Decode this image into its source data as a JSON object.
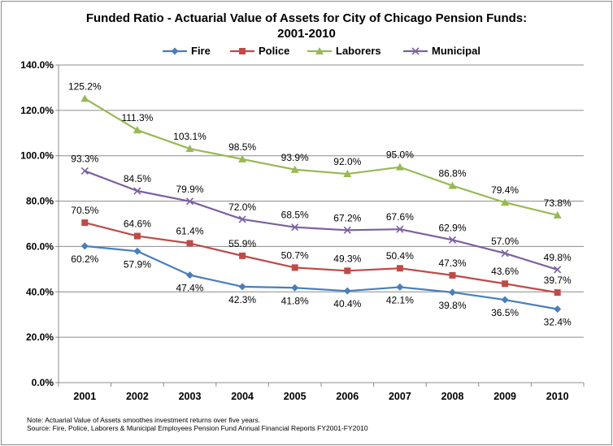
{
  "chart_data": {
    "type": "line",
    "title_line1": "Funded Ratio - Actuarial Value of Assets for City of Chicago Pension Funds:",
    "title_line2": "2001-2010",
    "categories": [
      "2001",
      "2002",
      "2003",
      "2004",
      "2005",
      "2006",
      "2007",
      "2008",
      "2009",
      "2010"
    ],
    "ylim": [
      0,
      140
    ],
    "yticks": [
      "0.0%",
      "20.0%",
      "40.0%",
      "60.0%",
      "80.0%",
      "100.0%",
      "120.0%",
      "140.0%"
    ],
    "grid": true,
    "legend_position": "top",
    "series": [
      {
        "name": "Fire",
        "color": "#4a7ebb",
        "marker": "diamond",
        "values": [
          60.2,
          57.9,
          47.4,
          42.3,
          41.8,
          40.4,
          42.1,
          39.8,
          36.5,
          32.4
        ],
        "labels": [
          "60.2%",
          "57.9%",
          "47.4%",
          "42.3%",
          "41.8%",
          "40.4%",
          "42.1%",
          "39.8%",
          "36.5%",
          "32.4%"
        ]
      },
      {
        "name": "Police",
        "color": "#be4b48",
        "marker": "square",
        "values": [
          70.5,
          64.6,
          61.4,
          55.9,
          50.7,
          49.3,
          50.4,
          47.3,
          43.6,
          39.7
        ],
        "labels": [
          "70.5%",
          "64.6%",
          "61.4%",
          "55.9%",
          "50.7%",
          "49.3%",
          "50.4%",
          "47.3%",
          "43.6%",
          "39.7%"
        ]
      },
      {
        "name": "Laborers",
        "color": "#98b954",
        "marker": "triangle",
        "values": [
          125.2,
          111.3,
          103.1,
          98.5,
          93.9,
          92.0,
          95.0,
          86.8,
          79.4,
          73.8
        ],
        "labels": [
          "125.2%",
          "111.3%",
          "103.1%",
          "98.5%",
          "93.9%",
          "92.0%",
          "95.0%",
          "86.8%",
          "79.4%",
          "73.8%"
        ]
      },
      {
        "name": "Municipal",
        "color": "#7d60a0",
        "marker": "x",
        "values": [
          93.3,
          84.5,
          79.9,
          72.0,
          68.5,
          67.2,
          67.6,
          62.9,
          57.0,
          49.8
        ],
        "labels": [
          "93.3%",
          "84.5%",
          "79.9%",
          "72.0%",
          "68.5%",
          "67.2%",
          "67.6%",
          "62.9%",
          "57.0%",
          "49.8%"
        ]
      }
    ]
  },
  "notes": {
    "line1": "Note: Actuarial  Value of Assets smoothes investment returns over five years.",
    "line2": "Source: Fire, Police, Laborers & Municipal Employees Pension Fund Annual Financial Reports FY2001-FY2010"
  }
}
